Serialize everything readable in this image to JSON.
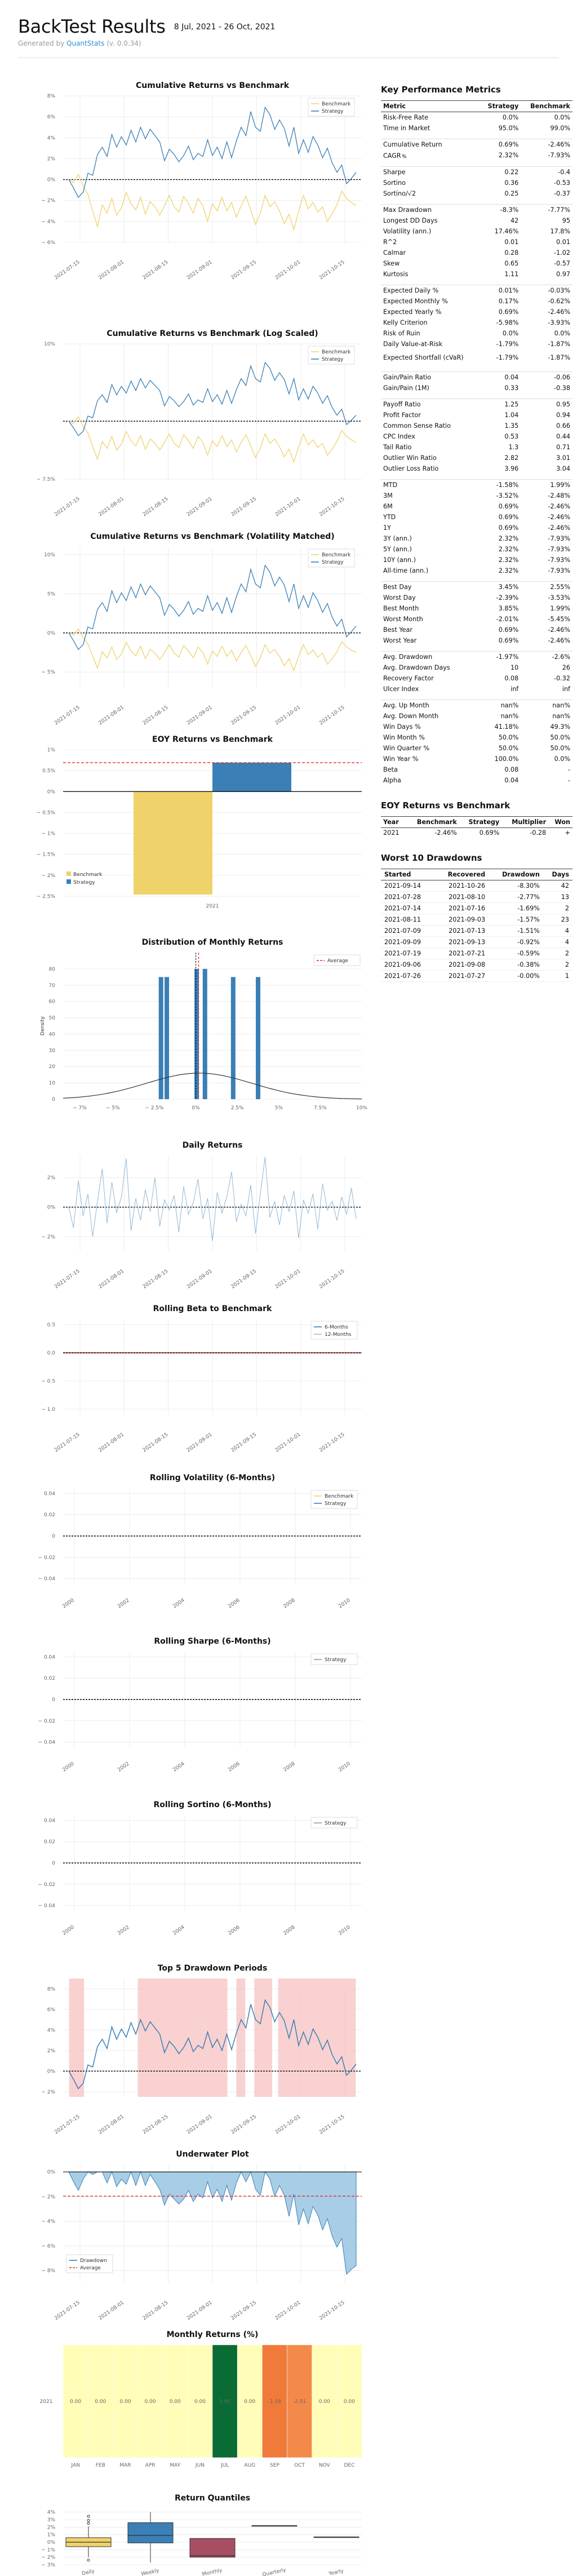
{
  "header": {
    "title": "BackTest Results",
    "date_range": "8 Jul, 2021 - 26 Oct, 2021",
    "generated_prefix": "Generated by",
    "generator_name": "QuantStats",
    "generator_version": "(v. 0.0.34)"
  },
  "colors": {
    "strategy": "#3a7fb5",
    "benchmark": "#f0d26b",
    "zero_line": "#000000",
    "average": "#e22b2b",
    "drawdown_fill": "#f7c5c5",
    "underwater_fill": "#a8cde6"
  },
  "metrics_section": {
    "title": "Key Performance Metrics",
    "headers": [
      "Metric",
      "Strategy",
      "Benchmark"
    ],
    "groups": [
      [
        [
          "Risk-Free Rate",
          "0.0%",
          "0.0%"
        ],
        [
          "Time in Market",
          "95.0%",
          "99.0%"
        ]
      ],
      [
        [
          "Cumulative Return",
          "0.69%",
          "-2.46%"
        ],
        [
          "CAGR﹪",
          "2.32%",
          "-7.93%"
        ]
      ],
      [
        [
          "Sharpe",
          "0.22",
          "-0.4"
        ],
        [
          "Sortino",
          "0.36",
          "-0.53"
        ],
        [
          "Sortino/√2",
          "0.25",
          "-0.37"
        ]
      ],
      [
        [
          "Max Drawdown",
          "-8.3%",
          "-7.77%"
        ],
        [
          "Longest DD Days",
          "42",
          "95"
        ],
        [
          "Volatility (ann.)",
          "17.46%",
          "17.8%"
        ],
        [
          "R^2",
          "0.01",
          "0.01"
        ],
        [
          "Calmar",
          "0.28",
          "-1.02"
        ],
        [
          "Skew",
          "0.65",
          "-0.57"
        ],
        [
          "Kurtosis",
          "1.11",
          "0.97"
        ]
      ],
      [
        [
          "Expected Daily %",
          "0.01%",
          "-0.03%"
        ],
        [
          "Expected Monthly %",
          "0.17%",
          "-0.62%"
        ],
        [
          "Expected Yearly %",
          "0.69%",
          "-2.46%"
        ],
        [
          "Kelly Criterion",
          "-5.98%",
          "-3.93%"
        ],
        [
          "Risk of Ruin",
          "0.0%",
          "0.0%"
        ],
        [
          "Daily Value-at-Risk",
          "-1.79%",
          "-1.87%"
        ],
        [
          "Expected Shortfall (cVaR)",
          "-1.79%",
          "-1.87%"
        ]
      ],
      [
        [
          "Gain/Pain Ratio",
          "0.04",
          "-0.06"
        ],
        [
          "Gain/Pain (1M)",
          "0.33",
          "-0.38"
        ]
      ],
      [
        [
          "Payoff Ratio",
          "1.25",
          "0.95"
        ],
        [
          "Profit Factor",
          "1.04",
          "0.94"
        ],
        [
          "Common Sense Ratio",
          "1.35",
          "0.66"
        ],
        [
          "CPC Index",
          "0.53",
          "0.44"
        ],
        [
          "Tail Ratio",
          "1.3",
          "0.71"
        ],
        [
          "Outlier Win Ratio",
          "2.82",
          "3.01"
        ],
        [
          "Outlier Loss Ratio",
          "3.96",
          "3.04"
        ]
      ],
      [
        [
          "MTD",
          "-1.58%",
          "1.99%"
        ],
        [
          "3M",
          "-3.52%",
          "-2.48%"
        ],
        [
          "6M",
          "0.69%",
          "-2.46%"
        ],
        [
          "YTD",
          "0.69%",
          "-2.46%"
        ],
        [
          "1Y",
          "0.69%",
          "-2.46%"
        ],
        [
          "3Y (ann.)",
          "2.32%",
          "-7.93%"
        ],
        [
          "5Y (ann.)",
          "2.32%",
          "-7.93%"
        ],
        [
          "10Y (ann.)",
          "2.32%",
          "-7.93%"
        ],
        [
          "All-time (ann.)",
          "2.32%",
          "-7.93%"
        ]
      ],
      [
        [
          "Best Day",
          "3.45%",
          "2.55%"
        ],
        [
          "Worst Day",
          "-2.39%",
          "-3.53%"
        ],
        [
          "Best Month",
          "3.85%",
          "1.99%"
        ],
        [
          "Worst Month",
          "-2.01%",
          "-5.45%"
        ],
        [
          "Best Year",
          "0.69%",
          "-2.46%"
        ],
        [
          "Worst Year",
          "0.69%",
          "-2.46%"
        ]
      ],
      [
        [
          "Avg. Drawdown",
          "-1.97%",
          "-2.6%"
        ],
        [
          "Avg. Drawdown Days",
          "10",
          "26"
        ],
        [
          "Recovery Factor",
          "0.08",
          "-0.32"
        ],
        [
          "Ulcer Index",
          "inf",
          "inf"
        ]
      ],
      [
        [
          "Avg. Up Month",
          "nan%",
          "nan%"
        ],
        [
          "Avg. Down Month",
          "nan%",
          "nan%"
        ],
        [
          "Win Days %",
          "41.18%",
          "49.3%"
        ],
        [
          "Win Month %",
          "50.0%",
          "50.0%"
        ],
        [
          "Win Quarter %",
          "50.0%",
          "50.0%"
        ],
        [
          "Win Year %",
          "100.0%",
          "0.0%"
        ],
        [
          "Beta",
          "0.08",
          "-"
        ],
        [
          "Alpha",
          "0.04",
          "-"
        ]
      ]
    ]
  },
  "eoy_section": {
    "title": "EOY Returns vs Benchmark",
    "headers": [
      "Year",
      "Benchmark",
      "Strategy",
      "Multiplier",
      "Won"
    ],
    "rows": [
      [
        "2021",
        "-2.46%",
        "0.69%",
        "-0.28",
        "+"
      ]
    ]
  },
  "drawdowns_section": {
    "title": "Worst 10 Drawdowns",
    "headers": [
      "Started",
      "Recovered",
      "Drawdown",
      "Days"
    ],
    "rows": [
      [
        "2021-09-14",
        "2021-10-26",
        "-8.30%",
        "42"
      ],
      [
        "2021-07-28",
        "2021-08-10",
        "-2.77%",
        "13"
      ],
      [
        "2021-07-14",
        "2021-07-16",
        "-1.69%",
        "2"
      ],
      [
        "2021-08-11",
        "2021-09-03",
        "-1.57%",
        "23"
      ],
      [
        "2021-07-09",
        "2021-07-13",
        "-1.51%",
        "4"
      ],
      [
        "2021-09-09",
        "2021-09-13",
        "-0.92%",
        "4"
      ],
      [
        "2021-07-19",
        "2021-07-21",
        "-0.59%",
        "2"
      ],
      [
        "2021-09-06",
        "2021-09-08",
        "-0.38%",
        "2"
      ],
      [
        "2021-07-26",
        "2021-07-27",
        "-0.00%",
        "1"
      ]
    ]
  },
  "date_ticks": [
    "2021-07-15",
    "2021-08-01",
    "2021-08-15",
    "2021-09-01",
    "2021-09-15",
    "2021-10-01",
    "2021-10-15"
  ],
  "year_ticks": [
    "2000",
    "2002",
    "2004",
    "2006",
    "2008",
    "2010"
  ],
  "legend": {
    "benchmark": "Benchmark",
    "strategy": "Strategy",
    "average": "Average",
    "beta6": "6-Months",
    "beta12": "12-Months",
    "drawdown": "Drawdown"
  },
  "chart_data": [
    {
      "type": "line",
      "title": "Cumulative Returns vs Benchmark",
      "ylim": [
        -6,
        8
      ],
      "yticks": [
        8,
        6,
        4,
        2,
        0,
        -2,
        -4,
        -6
      ],
      "y_suffix": "%",
      "series": [
        {
          "name": "Strategy",
          "values": [
            0.0,
            -0.8,
            -1.7,
            -1.2,
            0.6,
            0.4,
            2.4,
            3.1,
            2.2,
            4.3,
            3.1,
            4.1,
            3.3,
            4.7,
            3.6,
            5.0,
            3.9,
            4.8,
            4.2,
            3.6,
            1.8,
            2.9,
            2.4,
            1.7,
            2.3,
            3.2,
            1.9,
            2.5,
            2.2,
            3.8,
            2.3,
            3.1,
            2.0,
            3.6,
            2.1,
            3.7,
            5.0,
            4.2,
            6.5,
            5.0,
            4.6,
            6.9,
            6.2,
            4.8,
            5.7,
            4.9,
            3.2,
            5.0,
            2.5,
            3.8,
            2.6,
            4.1,
            3.3,
            2.1,
            3.0,
            1.6,
            0.7,
            1.4,
            -0.4,
            0.1,
            0.7
          ]
        },
        {
          "name": "Benchmark",
          "values": [
            0.0,
            -0.3,
            0.5,
            -0.6,
            -1.4,
            -3.0,
            -4.5,
            -2.4,
            -3.2,
            -1.8,
            -3.4,
            -2.7,
            -1.2,
            -2.3,
            -2.9,
            -1.7,
            -3.3,
            -2.1,
            -2.6,
            -3.4,
            -2.5,
            -1.5,
            -2.6,
            -3.1,
            -1.6,
            -2.3,
            -3.2,
            -1.8,
            -2.5,
            -4.0,
            -2.3,
            -3.0,
            -1.7,
            -3.0,
            -2.2,
            -3.6,
            -2.5,
            -1.6,
            -2.9,
            -4.3,
            -3.2,
            -1.5,
            -2.6,
            -2.1,
            -3.0,
            -4.2,
            -3.3,
            -4.8,
            -3.0,
            -1.5,
            -2.8,
            -2.2,
            -3.1,
            -2.6,
            -4.0,
            -3.3,
            -2.4,
            -1.1,
            -1.8,
            -2.2,
            -2.5
          ]
        }
      ]
    },
    {
      "type": "line",
      "title": "Cumulative Returns vs Benchmark (Log Scaled)",
      "ylim": [
        -7.5,
        10
      ],
      "yticks": [
        10,
        -7.5
      ],
      "y_suffix": "%",
      "yscale": "log"
    },
    {
      "type": "line",
      "title": "Cumulative Returns vs Benchmark (Volatility Matched)",
      "ylim": [
        -7,
        11
      ],
      "yticks": [
        10,
        5,
        0,
        -5
      ],
      "y_suffix": "%"
    },
    {
      "type": "bar",
      "title": "EOY Returns  vs Benchmark",
      "categories": [
        "2021"
      ],
      "series": [
        {
          "name": "Benchmark",
          "values": [
            -2.46
          ]
        },
        {
          "name": "Strategy",
          "values": [
            0.69
          ]
        }
      ],
      "ylim": [
        -2.5,
        1
      ],
      "yticks": [
        1,
        0.5,
        0,
        -0.5,
        -1,
        -1.5,
        -2,
        -2.5
      ],
      "y_suffix": "%",
      "average": 0.69
    },
    {
      "type": "bar",
      "title": "Distribution of Monthly Returns",
      "ylabel": "Density",
      "bins_x": [
        -2.1,
        -1.75,
        0.05,
        0.55,
        2.25,
        3.75
      ],
      "bins_density": [
        75,
        75,
        80,
        80,
        75,
        75
      ],
      "average": 0.17,
      "xlim": [
        -8,
        10
      ],
      "xticks": [
        -7,
        -5,
        -2.5,
        0,
        2.5,
        5,
        7.5,
        10
      ],
      "x_suffix": "%",
      "ylim": [
        0,
        90
      ],
      "yticks": [
        80,
        70,
        60,
        50,
        40,
        30,
        20,
        10,
        0
      ]
    },
    {
      "type": "line",
      "title": "Daily Returns",
      "ylim": [
        -3,
        3.5
      ],
      "yticks": [
        2,
        0,
        -2
      ],
      "y_suffix": "%",
      "values": [
        0.0,
        -1.4,
        1.8,
        -0.6,
        0.9,
        -2.0,
        0.4,
        2.6,
        -1.1,
        1.7,
        -0.4,
        0.7,
        3.3,
        -1.6,
        0.6,
        -0.9,
        1.2,
        -0.3,
        2.0,
        -1.3,
        0.5,
        -0.2,
        0.8,
        -1.7,
        1.4,
        -0.5,
        0.3,
        1.9,
        -0.8,
        0.6,
        -2.3,
        1.0,
        -0.4,
        0.7,
        2.4,
        -1.0,
        0.2,
        -0.6,
        1.5,
        -1.8,
        0.9,
        3.4,
        -0.7,
        0.4,
        -1.2,
        0.8,
        -0.3,
        1.1,
        -2.1,
        0.5,
        -0.4,
        0.9,
        -1.5,
        1.6,
        -0.2,
        0.4,
        -0.9,
        0.7,
        -0.5,
        1.3,
        -0.8
      ]
    },
    {
      "type": "line",
      "title": "Rolling Beta to Benchmark",
      "ylim": [
        -1.1,
        0.6
      ],
      "yticks": [
        0.5,
        0,
        -0.5,
        -1
      ],
      "y_suffix": ".0"
    },
    {
      "type": "line",
      "title": "Rolling Volatility (6-Months)",
      "ylim": [
        -0.045,
        0.045
      ],
      "yticks": [
        0.04,
        0.02,
        0,
        -0.02,
        -0.04
      ]
    },
    {
      "type": "line",
      "title": "Rolling Sharpe (6-Months)",
      "ylim": [
        -0.045,
        0.045
      ],
      "yticks": [
        0.04,
        0.02,
        0,
        -0.02,
        -0.04
      ]
    },
    {
      "type": "line",
      "title": "Rolling Sortino (6-Months)",
      "ylim": [
        -0.045,
        0.045
      ],
      "yticks": [
        0.04,
        0.02,
        0,
        -0.02,
        -0.04
      ]
    },
    {
      "type": "area",
      "title": "Top 5 Drawdown Periods",
      "ylim": [
        -2.5,
        9
      ],
      "yticks": [
        8,
        6,
        4,
        2,
        0,
        -2
      ],
      "y_suffix": "%",
      "periods": [
        [
          0.02,
          0.07
        ],
        [
          0.25,
          0.55
        ],
        [
          0.58,
          0.61
        ],
        [
          0.64,
          0.7
        ],
        [
          0.72,
          0.98
        ]
      ]
    },
    {
      "type": "area",
      "title": "Underwater Plot",
      "ylim": [
        -9,
        0.6
      ],
      "yticks": [
        0,
        -2,
        -4,
        -6,
        -8
      ],
      "y_suffix": "%",
      "average": -1.97,
      "values": [
        0.0,
        -0.8,
        -1.5,
        -0.6,
        0.0,
        -0.2,
        0.0,
        0.0,
        -0.9,
        0.0,
        -1.2,
        -0.6,
        -1.0,
        0.0,
        -1.1,
        0.0,
        -1.1,
        -0.2,
        -0.8,
        -1.4,
        -2.7,
        -1.8,
        -2.2,
        -2.6,
        -2.2,
        -1.5,
        -2.4,
        -1.8,
        -2.1,
        -0.8,
        -2.1,
        -1.4,
        -2.4,
        -1.1,
        -2.3,
        -0.9,
        0.0,
        -0.8,
        0.0,
        -1.4,
        -1.9,
        0.0,
        -0.6,
        -2.0,
        -1.1,
        -1.9,
        -3.6,
        -1.8,
        -4.3,
        -3.0,
        -4.2,
        -2.8,
        -3.5,
        -4.7,
        -3.8,
        -5.2,
        -6.1,
        -5.4,
        -8.3,
        -7.9,
        -7.6
      ]
    },
    {
      "type": "heatmap",
      "title": "Monthly Returns (%)",
      "ylabel": "2021",
      "categories": [
        "JAN",
        "FEB",
        "MAR",
        "APR",
        "MAY",
        "JUN",
        "JUL",
        "AUG",
        "SEP",
        "OCT",
        "NOV",
        "DEC"
      ],
      "values": [
        0.0,
        0.0,
        0.0,
        0.0,
        0.0,
        0.0,
        3.85,
        0.0,
        -1.58,
        -2.01,
        0.0,
        0.0
      ],
      "labels": [
        "0.00",
        "0.00",
        "0.00",
        "0.00",
        "0.00",
        "0.00",
        "3.85",
        "0.00",
        "-1.58",
        "-2.01",
        "0.00",
        "0.00"
      ]
    },
    {
      "type": "box",
      "title": "Return Quantiles",
      "categories": [
        "Daily",
        "Weekly",
        "Monthly",
        "Quarterly",
        "Yearly"
      ],
      "ylim": [
        -3,
        4.5
      ],
      "yticks": [
        4,
        3,
        2,
        1,
        0,
        -1,
        -2,
        -3
      ],
      "y_suffix": "%",
      "boxes": [
        {
          "q1": -0.6,
          "median": 0.0,
          "q3": 0.6,
          "low": -2.0,
          "high": 2.1,
          "outliers": [
            3.45,
            2.9,
            2.5,
            -2.39
          ]
        },
        {
          "q1": -0.1,
          "median": 0.9,
          "q3": 2.6,
          "low": -2.7,
          "high": 4.0,
          "outliers": []
        },
        {
          "q1": -2.0,
          "median": -1.8,
          "q3": 0.5,
          "low": -2.0,
          "high": 0.5,
          "outliers": []
        },
        {
          "q1": 2.2,
          "median": 2.2,
          "q3": 2.2,
          "low": 2.2,
          "high": 2.2,
          "outliers": []
        },
        {
          "q1": 0.69,
          "median": 0.69,
          "q3": 0.69,
          "low": 0.69,
          "high": 0.69,
          "outliers": []
        }
      ]
    }
  ]
}
